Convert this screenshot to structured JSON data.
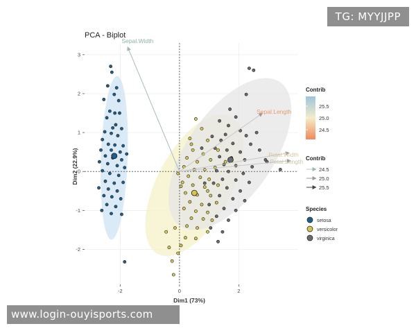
{
  "watermarks": {
    "tag": "TG: MYYJJPP",
    "url": "www.login-ouyisports.com"
  },
  "chart_data": {
    "type": "scatter",
    "title": "PCA - Biplot",
    "xlabel": "Dim1 (73%)",
    "ylabel": "Dim2 (22.9%)",
    "xlim": [
      -3.2,
      4.0
    ],
    "ylim": [
      -2.9,
      3.3
    ],
    "xticks": [
      -2,
      0,
      2
    ],
    "yticks": [
      -2,
      -1,
      0,
      1,
      2,
      3
    ],
    "grid": true,
    "legend_position": "right",
    "colors": {
      "panel_bg": "#ffffff",
      "grid": "#ececec",
      "setosa": "#1f5f8b",
      "versicolor": "#d6c650",
      "virginica": "#6b6b6b",
      "setosa_ellipse": "#cfe3f4",
      "versicolor_ellipse": "#f6f0c8",
      "virginica_ellipse": "#e6e6e6"
    },
    "series": [
      {
        "name": "setosa",
        "centroid": [
          -2.2,
          0.4
        ],
        "ellipse": {
          "cx": -2.2,
          "cy": 0.35,
          "rx": 0.45,
          "ry": 2.1,
          "angle": 2
        },
        "points": [
          [
            -2.32,
            2.7
          ],
          [
            -2.28,
            2.55
          ],
          [
            -2.42,
            2.2
          ],
          [
            -2.12,
            2.15
          ],
          [
            -2.2,
            1.98
          ],
          [
            -2.55,
            1.85
          ],
          [
            -2.05,
            1.82
          ],
          [
            -2.35,
            1.55
          ],
          [
            -2.18,
            1.5
          ],
          [
            -2.02,
            1.5
          ],
          [
            -2.45,
            1.38
          ],
          [
            -2.15,
            1.2
          ],
          [
            -2.25,
            1.12
          ],
          [
            -1.95,
            1.1
          ],
          [
            -2.52,
            1.02
          ],
          [
            -2.3,
            0.98
          ],
          [
            -2.08,
            0.92
          ],
          [
            -2.6,
            0.82
          ],
          [
            -2.4,
            0.7
          ],
          [
            -2.18,
            0.68
          ],
          [
            -1.9,
            0.66
          ],
          [
            -2.65,
            0.55
          ],
          [
            -2.3,
            0.55
          ],
          [
            -2.0,
            0.5
          ],
          [
            -1.78,
            0.45
          ],
          [
            -2.5,
            0.4
          ],
          [
            -2.25,
            0.35
          ],
          [
            -1.95,
            0.3
          ],
          [
            -2.7,
            0.25
          ],
          [
            -2.42,
            0.2
          ],
          [
            -2.1,
            0.15
          ],
          [
            -1.85,
            0.1
          ],
          [
            -2.6,
            0.02
          ],
          [
            -2.35,
            -0.05
          ],
          [
            -2.05,
            -0.1
          ],
          [
            -2.5,
            -0.25
          ],
          [
            -2.2,
            -0.3
          ],
          [
            -1.9,
            -0.28
          ],
          [
            -2.72,
            -0.42
          ],
          [
            -2.4,
            -0.45
          ],
          [
            -2.1,
            -0.5
          ],
          [
            -2.55,
            -0.62
          ],
          [
            -2.28,
            -0.65
          ],
          [
            -1.98,
            -0.7
          ],
          [
            -2.45,
            -0.85
          ],
          [
            -2.15,
            -0.9
          ],
          [
            -2.62,
            -1.0
          ],
          [
            -2.3,
            -1.08
          ],
          [
            -1.95,
            -1.1
          ],
          [
            -1.85,
            -2.32
          ]
        ]
      },
      {
        "name": "versicolor",
        "centroid": [
          0.5,
          -0.55
        ],
        "ellipse": {
          "cx": 0.5,
          "cy": -0.35,
          "rx": 1.25,
          "ry": 2.0,
          "angle": 28
        },
        "points": [
          [
            0.55,
            1.35
          ],
          [
            0.75,
            1.1
          ],
          [
            0.35,
            0.85
          ],
          [
            0.95,
            0.8
          ],
          [
            0.45,
            0.55
          ],
          [
            0.25,
            0.35
          ],
          [
            0.8,
            0.45
          ],
          [
            0.6,
            0.25
          ],
          [
            1.05,
            0.3
          ],
          [
            0.15,
            0.12
          ],
          [
            0.5,
            0.05
          ],
          [
            0.85,
            0.05
          ],
          [
            1.2,
            0.1
          ],
          [
            0.3,
            -0.12
          ],
          [
            0.7,
            -0.15
          ],
          [
            1.0,
            -0.2
          ],
          [
            0.1,
            -0.28
          ],
          [
            0.45,
            -0.35
          ],
          [
            0.85,
            -0.4
          ],
          [
            1.3,
            -0.35
          ],
          [
            0.2,
            -0.55
          ],
          [
            0.6,
            -0.6
          ],
          [
            1.05,
            -0.62
          ],
          [
            0.35,
            -0.78
          ],
          [
            0.75,
            -0.85
          ],
          [
            1.25,
            -0.8
          ],
          [
            0.15,
            -0.95
          ],
          [
            0.55,
            -1.02
          ],
          [
            0.95,
            -1.05
          ],
          [
            0.4,
            -1.2
          ],
          [
            0.8,
            -1.22
          ],
          [
            1.1,
            -1.25
          ],
          [
            0.25,
            -1.4
          ],
          [
            0.6,
            -1.45
          ],
          [
            0.95,
            -1.55
          ],
          [
            -0.45,
            -1.55
          ],
          [
            -0.15,
            -1.45
          ],
          [
            0.2,
            -1.7
          ],
          [
            0.55,
            -1.72
          ],
          [
            -0.35,
            -1.95
          ],
          [
            0.05,
            -1.9
          ],
          [
            -0.05,
            -2.1
          ],
          [
            -0.25,
            -2.3
          ],
          [
            -0.2,
            -2.65
          ],
          [
            1.3,
            0.55
          ],
          [
            1.55,
            0.25
          ],
          [
            0.05,
            -0.38
          ],
          [
            0.4,
            0.7
          ],
          [
            -0.05,
            -0.05
          ],
          [
            0.95,
            -0.5
          ]
        ]
      },
      {
        "name": "virginica",
        "centroid": [
          1.72,
          0.3
        ],
        "ellipse": {
          "cx": 1.7,
          "cy": 0.45,
          "rx": 1.45,
          "ry": 2.25,
          "angle": 35
        },
        "points": [
          [
            2.35,
            2.65
          ],
          [
            2.5,
            2.6
          ],
          [
            2.25,
            1.98
          ],
          [
            1.9,
            1.4
          ],
          [
            1.35,
            1.3
          ],
          [
            1.65,
            1.18
          ],
          [
            2.05,
            1.05
          ],
          [
            1.55,
            0.95
          ],
          [
            2.25,
            0.92
          ],
          [
            1.4,
            0.8
          ],
          [
            1.8,
            0.72
          ],
          [
            2.4,
            0.7
          ],
          [
            1.2,
            0.6
          ],
          [
            1.6,
            0.55
          ],
          [
            2.05,
            0.5
          ],
          [
            2.7,
            0.55
          ],
          [
            1.35,
            0.38
          ],
          [
            1.75,
            0.35
          ],
          [
            2.2,
            0.3
          ],
          [
            2.9,
            0.3
          ],
          [
            1.5,
            0.18
          ],
          [
            1.9,
            0.15
          ],
          [
            2.45,
            0.12
          ],
          [
            1.25,
            0.02
          ],
          [
            1.65,
            0.0
          ],
          [
            2.15,
            -0.05
          ],
          [
            3.4,
            0.05
          ],
          [
            1.45,
            -0.2
          ],
          [
            1.9,
            -0.22
          ],
          [
            2.35,
            -0.28
          ],
          [
            1.15,
            -0.3
          ],
          [
            1.6,
            -0.42
          ],
          [
            2.05,
            -0.5
          ],
          [
            1.35,
            -0.62
          ],
          [
            1.8,
            -0.7
          ],
          [
            2.2,
            -0.75
          ],
          [
            1.0,
            -0.85
          ],
          [
            1.5,
            -0.95
          ],
          [
            1.9,
            -1.0
          ],
          [
            1.25,
            -1.15
          ],
          [
            1.65,
            -1.25
          ],
          [
            1.05,
            -1.45
          ],
          [
            1.45,
            -1.55
          ],
          [
            0.85,
            -0.3
          ],
          [
            1.1,
            0.9
          ],
          [
            2.6,
            1.0
          ],
          [
            2.95,
            0.25
          ],
          [
            1.3,
            -1.8
          ],
          [
            0.75,
            0.6
          ],
          [
            1.7,
            1.6
          ]
        ]
      }
    ],
    "variables": [
      {
        "name": "Sepal.Width",
        "x": -1.75,
        "y": 3.2,
        "label_x": -1.95,
        "label_y": 3.3,
        "contrib": 24.3,
        "color": "#8fb0a8"
      },
      {
        "name": "Sepal.Length",
        "x": 2.8,
        "y": 1.5,
        "label_x": 2.6,
        "label_y": 1.48,
        "contrib": 24.9,
        "color": "#e89a6b"
      },
      {
        "name": "Petal.Width",
        "x": 3.7,
        "y": 0.48,
        "label_x": 3.0,
        "label_y": 0.38,
        "contrib": 25.0,
        "color": "#d9c6a0"
      },
      {
        "name": "Petal.Length",
        "x": 3.75,
        "y": 0.28,
        "label_x": 3.05,
        "label_y": 0.2,
        "contrib": 25.1,
        "color": "#c9c2a8"
      }
    ],
    "legend": {
      "contrib_title": "Contrib",
      "contrib_ticks": [
        "25.5",
        "25.0",
        "24.5"
      ],
      "arrow_title": "Contrib",
      "arrow_entries": [
        "24.5",
        "25.0",
        "25.5"
      ],
      "species_title": "Species",
      "species_entries": [
        "setosa",
        "versicolor",
        "virginica"
      ]
    }
  }
}
